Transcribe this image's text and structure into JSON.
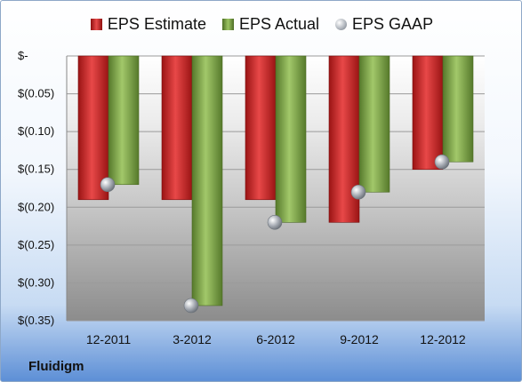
{
  "company": "Fluidigm",
  "colors": {
    "estimate": "#d62a2a",
    "actual": "#7ea64a",
    "gaap": "#b9bec6"
  },
  "chart_data": {
    "type": "bar",
    "categories": [
      "12-2011",
      "3-2012",
      "6-2012",
      "9-2012",
      "12-2012"
    ],
    "series": [
      {
        "name": "EPS Estimate",
        "kind": "bar",
        "values": [
          -0.19,
          -0.19,
          -0.19,
          -0.22,
          -0.15
        ]
      },
      {
        "name": "EPS Actual",
        "kind": "bar",
        "values": [
          -0.17,
          -0.33,
          -0.22,
          -0.18,
          -0.14
        ]
      },
      {
        "name": "EPS GAAP",
        "kind": "marker",
        "values": [
          -0.17,
          -0.33,
          -0.22,
          -0.18,
          -0.14
        ]
      }
    ],
    "ylim": [
      -0.35,
      0
    ],
    "yticks": [
      0,
      -0.05,
      -0.1,
      -0.15,
      -0.2,
      -0.25,
      -0.3,
      -0.35
    ],
    "ytick_labels": [
      "$-",
      "$(0.05)",
      "$(0.10)",
      "$(0.15)",
      "$(0.20)",
      "$(0.25)",
      "$(0.30)",
      "$(0.35)"
    ],
    "legend": "top-center",
    "grid": true
  }
}
